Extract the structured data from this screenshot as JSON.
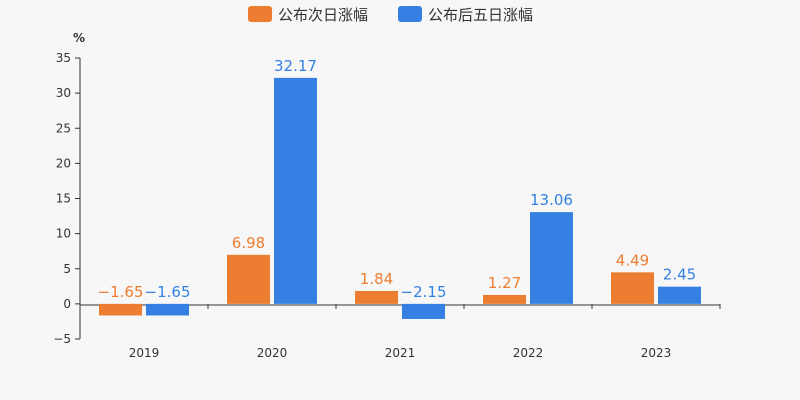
{
  "chart_data": {
    "type": "bar",
    "categories": [
      "2019",
      "2020",
      "2021",
      "2022",
      "2023"
    ],
    "series": [
      {
        "name": "公布次日涨幅",
        "color": "#ed7d31",
        "values": [
          -1.65,
          6.98,
          1.84,
          1.27,
          4.49
        ],
        "labels": [
          "−1.65",
          "6.98",
          "1.84",
          "1.27",
          "4.49"
        ]
      },
      {
        "name": "公布后五日涨幅",
        "color": "#3481e3",
        "values": [
          -1.65,
          32.17,
          -2.15,
          13.06,
          2.45
        ],
        "labels": [
          "−1.65",
          "32.17",
          "−2.15",
          "13.06",
          "2.45"
        ]
      }
    ],
    "y_unit": "%",
    "ylim": [
      -5,
      35
    ],
    "yticks": [
      35,
      30,
      25,
      20,
      15,
      10,
      5,
      0,
      -5
    ],
    "ytick_labels": [
      "35",
      "30",
      "25",
      "20",
      "15",
      "10",
      "5",
      "0",
      "−5"
    ],
    "grid": false,
    "legend_position": "top-center"
  }
}
